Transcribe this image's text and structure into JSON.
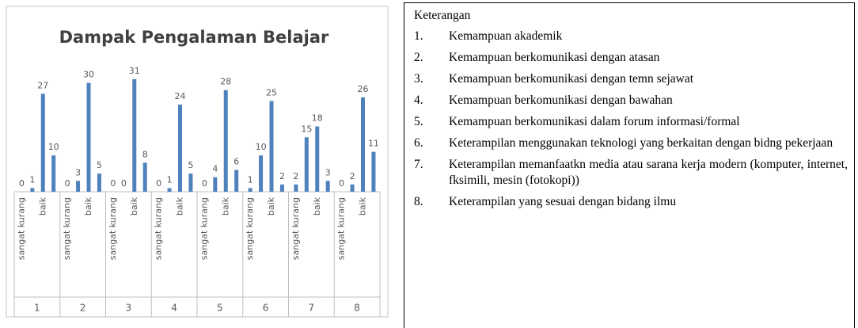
{
  "chart_data": {
    "type": "grouped-bar",
    "title": "Dampak Pengalaman Belajar",
    "groups": [
      "1",
      "2",
      "3",
      "4",
      "5",
      "6",
      "7",
      "8"
    ],
    "categories": [
      "sangat kurang",
      null,
      "baik",
      null
    ],
    "color": "#4f81bd",
    "values": [
      [
        0,
        1,
        27,
        10
      ],
      [
        0,
        3,
        30,
        5
      ],
      [
        0,
        0,
        31,
        8
      ],
      [
        0,
        1,
        24,
        5
      ],
      [
        0,
        4,
        28,
        6
      ],
      [
        1,
        10,
        25,
        2
      ],
      [
        2,
        15,
        18,
        3
      ],
      [
        0,
        2,
        26,
        11
      ]
    ]
  },
  "legend_box": {
    "title": "Keterangan",
    "items": [
      {
        "number": "1.",
        "text": "Kemampuan akademik"
      },
      {
        "number": "2.",
        "text": "Kemampuan berkomunikasi dengan atasan"
      },
      {
        "number": "3.",
        "text": "Kemampuan berkomunikasi dengan temn sejawat"
      },
      {
        "number": "4.",
        "text": "Kemampuan berkomunikasi dengan bawahan"
      },
      {
        "number": "5.",
        "text": "Kemampuan berkomunikasi dalam forum informasi/formal"
      },
      {
        "number": "6.",
        "text": "Keterampilan menggunakan teknologi yang berkaitan dengan bidng pekerjaan"
      },
      {
        "number": "7.",
        "text": "Keterampilan memanfaatkn media atau sarana kerja modern (komputer, internet, fksimili, mesin (fotokopi))"
      },
      {
        "number": "8.",
        "text": "Keterampilan yang sesuai dengan bidang ilmu"
      }
    ]
  }
}
